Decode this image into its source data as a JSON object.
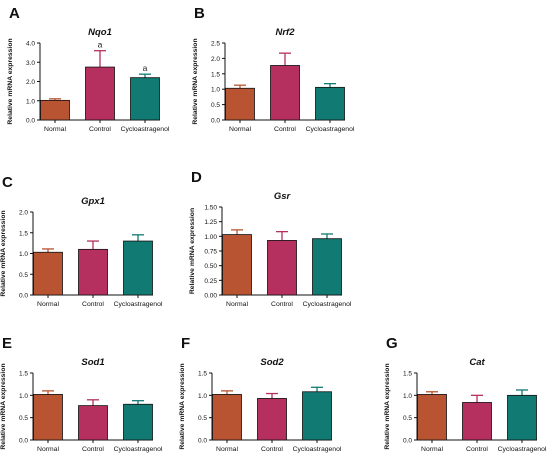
{
  "figure": {
    "group_colors": {
      "Normal": "#B85432",
      "Control": "#B5305E",
      "Cycloastragenol": "#117A72"
    },
    "axis_color": "#111111",
    "error_bar_color": "#333333"
  },
  "chart_data": [
    {
      "panel": "A",
      "type": "bar",
      "title": "Nqo1",
      "ylabel": "Relative mRNA expression",
      "categories": [
        "Normal",
        "Control",
        "Cycloastragenol"
      ],
      "values": [
        1.02,
        2.75,
        2.2
      ],
      "errors": [
        0.08,
        0.85,
        0.18
      ],
      "annotations": [
        "",
        "a",
        "a"
      ],
      "ylim": [
        0,
        4.0
      ],
      "yticks": [
        "0.0",
        "1.0",
        "2.0",
        "3.0",
        "4.0"
      ],
      "ytick_values": [
        0,
        1,
        2,
        3,
        4
      ],
      "grid": false
    },
    {
      "panel": "B",
      "type": "bar",
      "title": "Nrf2",
      "ylabel": "Relative mRNA expression",
      "categories": [
        "Normal",
        "Control",
        "Cycloastragenol"
      ],
      "values": [
        1.03,
        1.77,
        1.06
      ],
      "errors": [
        0.1,
        0.4,
        0.12
      ],
      "annotations": [
        "",
        "",
        ""
      ],
      "ylim": [
        0,
        2.5
      ],
      "yticks": [
        "0.0",
        "0.5",
        "1.0",
        "1.5",
        "2.0",
        "2.5"
      ],
      "ytick_values": [
        0,
        0.5,
        1,
        1.5,
        2,
        2.5
      ],
      "grid": false
    },
    {
      "panel": "C",
      "type": "bar",
      "title": "Gpx1",
      "ylabel": "Relative mRNA expression",
      "categories": [
        "Normal",
        "Control",
        "Cycloastragenol"
      ],
      "values": [
        1.03,
        1.1,
        1.3
      ],
      "errors": [
        0.08,
        0.2,
        0.15
      ],
      "annotations": [
        "",
        "",
        ""
      ],
      "ylim": [
        0,
        2.0
      ],
      "yticks": [
        "0.0",
        "0.5",
        "1.0",
        "1.5",
        "2.0"
      ],
      "ytick_values": [
        0,
        0.5,
        1,
        1.5,
        2
      ],
      "grid": false
    },
    {
      "panel": "D",
      "type": "bar",
      "title": "Gsr",
      "ylabel": "Relative mRNA expression",
      "categories": [
        "Normal",
        "Control",
        "Cycloastragenol"
      ],
      "values": [
        1.03,
        0.93,
        0.96
      ],
      "errors": [
        0.08,
        0.15,
        0.08
      ],
      "annotations": [
        "",
        "",
        ""
      ],
      "ylim": [
        0,
        1.5
      ],
      "yticks": [
        "0.00",
        "0.25",
        "0.50",
        "0.75",
        "1.00",
        "1.25",
        "1.50"
      ],
      "ytick_values": [
        0,
        0.25,
        0.5,
        0.75,
        1,
        1.25,
        1.5
      ],
      "grid": false
    },
    {
      "panel": "E",
      "type": "bar",
      "title": "Sod1",
      "ylabel": "Relative mRNA expression",
      "categories": [
        "Normal",
        "Control",
        "Cycloastragenol"
      ],
      "values": [
        1.02,
        0.77,
        0.8
      ],
      "errors": [
        0.08,
        0.13,
        0.08
      ],
      "annotations": [
        "",
        "",
        ""
      ],
      "ylim": [
        0,
        1.5
      ],
      "yticks": [
        "0.0",
        "0.5",
        "1.0",
        "1.5"
      ],
      "ytick_values": [
        0,
        0.5,
        1,
        1.5
      ],
      "grid": false
    },
    {
      "panel": "F",
      "type": "bar",
      "title": "Sod2",
      "ylabel": "Relative mRNA expression",
      "categories": [
        "Normal",
        "Control",
        "Cycloastragenol"
      ],
      "values": [
        1.02,
        0.93,
        1.08
      ],
      "errors": [
        0.08,
        0.11,
        0.1
      ],
      "annotations": [
        "",
        "",
        ""
      ],
      "ylim": [
        0,
        1.5
      ],
      "yticks": [
        "0.0",
        "0.5",
        "1.0",
        "1.5"
      ],
      "ytick_values": [
        0,
        0.5,
        1,
        1.5
      ],
      "grid": false
    },
    {
      "panel": "G",
      "type": "bar",
      "title": "Cat",
      "ylabel": "Relative mRNA expression",
      "categories": [
        "Normal",
        "Control",
        "Cycloastragenol"
      ],
      "values": [
        1.02,
        0.84,
        1.0
      ],
      "errors": [
        0.06,
        0.16,
        0.12
      ],
      "annotations": [
        "",
        "",
        ""
      ],
      "ylim": [
        0,
        1.5
      ],
      "yticks": [
        "0.0",
        "0.5",
        "1.0",
        "1.5"
      ],
      "ytick_values": [
        0,
        0.5,
        1,
        1.5
      ],
      "grid": false
    }
  ]
}
